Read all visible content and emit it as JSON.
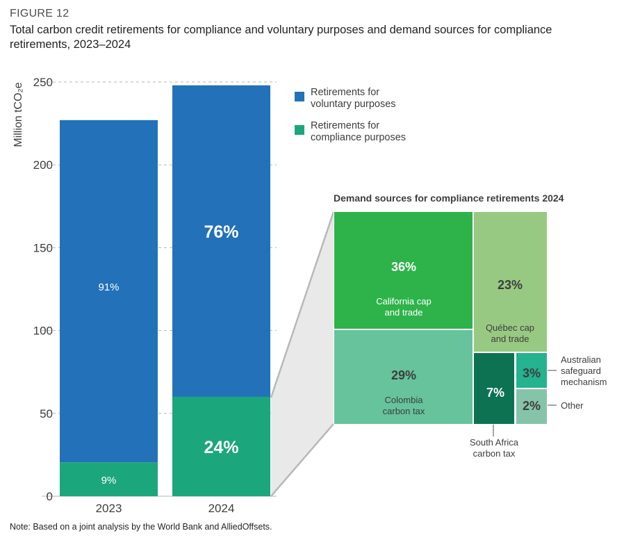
{
  "figure": {
    "label": "FIGURE 12",
    "title": "Total carbon credit retirements for compliance and voluntary purposes and demand sources for compliance retirements, 2023–2024",
    "note": "Note: Based on a joint analysis by the World Bank and AlliedOffsets."
  },
  "colors": {
    "voluntary": "#2271b9",
    "compliance": "#1ba77b",
    "gridline": "#b3b3b3",
    "connector": "#b8b8b8"
  },
  "chart_data": [
    {
      "type": "bar",
      "stacked": true,
      "categories": [
        "2023",
        "2024"
      ],
      "ylabel": "Million tCO₂e",
      "ylim": [
        0,
        250
      ],
      "yticks": [
        0,
        50,
        100,
        150,
        200,
        250
      ],
      "grid": true,
      "legend_position": "right",
      "series": [
        {
          "name": "Retirements for compliance purposes",
          "color_key": "compliance",
          "values": [
            20.5,
            60
          ],
          "labels": [
            "9%",
            "24%"
          ]
        },
        {
          "name": "Retirements for voluntary purposes",
          "color_key": "voluntary",
          "values": [
            206.5,
            188
          ],
          "labels": [
            "91%",
            "76%"
          ]
        }
      ],
      "legend": [
        {
          "label": "Retirements for voluntary purposes",
          "color": "#2271b9"
        },
        {
          "label": "Retirements for compliance purposes",
          "color": "#1ba77b"
        }
      ]
    },
    {
      "type": "treemap",
      "title": "Demand sources for compliance retirements 2024",
      "items": [
        {
          "pct": "36%",
          "value": 36,
          "name": "California cap and trade",
          "color": "#2db34a",
          "text_color": "#ffffff"
        },
        {
          "pct": "23%",
          "value": 23,
          "name": "Québec cap and trade",
          "color": "#98c983",
          "text_color": "#3d3d3d"
        },
        {
          "pct": "29%",
          "value": 29,
          "name": "Colombia carbon tax",
          "color": "#66c39c",
          "text_color": "#3d3d3d"
        },
        {
          "pct": "7%",
          "value": 7,
          "name": "South Africa carbon tax",
          "color": "#0d7251",
          "text_color": "#ffffff"
        },
        {
          "pct": "3%",
          "value": 3,
          "name": "Australian safeguard mechanism",
          "color": "#25b28f",
          "text_color": "#3d3d3d"
        },
        {
          "pct": "2%",
          "value": 2,
          "name": "Other",
          "color": "#85c4a8",
          "text_color": "#3d3d3d"
        }
      ]
    }
  ]
}
